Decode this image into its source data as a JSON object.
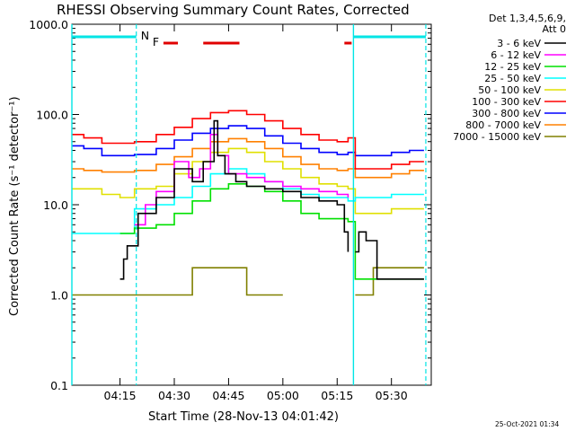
{
  "colors": {
    "background": "#ffffff",
    "axes": "#000000",
    "night_lines": "#00e5e5",
    "flare_marks": "#e00000"
  },
  "chart_data": {
    "type": "line",
    "title": "RHESSI Observing Summary Count Rates, Corrected",
    "xlabel": "Start Time (28-Nov-13 04:01:42)",
    "ylabel": "Corrected Count Rate (s⁻¹ detector⁻¹)",
    "timestamp": "25-Oct-2021 01:34",
    "y_scale": "log",
    "ylim": [
      0.1,
      1000
    ],
    "xlim": [
      "04:01:42",
      "05:41:00"
    ],
    "x_ticks": [
      "04:15",
      "04:30",
      "04:45",
      "05:00",
      "05:15",
      "05:30"
    ],
    "y_ticks": [
      "0.1",
      "1.0",
      "10.0",
      "100.0",
      "1000.0"
    ],
    "legend": {
      "header": [
        "Det 1,3,4,5,6,9,",
        "Att 0"
      ],
      "placement": "right"
    },
    "markers": {
      "night_start": [
        "04:01:42",
        "05:19:30"
      ],
      "night_end": [
        "04:19:30",
        "05:39:30"
      ],
      "night_label": "N",
      "flare_label": "F",
      "flare_intervals": [
        [
          "04:27",
          "04:31"
        ],
        [
          "04:38",
          "04:48"
        ],
        [
          "05:17",
          "05:19"
        ]
      ]
    },
    "series": [
      {
        "name": "3 - 6 keV",
        "color": "#000000",
        "x": [
          "04:15",
          "04:16",
          "04:17",
          "04:20",
          "04:25",
          "04:30",
          "04:35",
          "04:38",
          "04:41",
          "04:42",
          "04:44",
          "04:47",
          "04:50",
          "04:55",
          "05:00",
          "05:05",
          "05:10",
          "05:15",
          "05:17",
          "05:18"
        ],
        "y": [
          1.5,
          2.5,
          3.5,
          8,
          12,
          25,
          18,
          30,
          85,
          35,
          22,
          18,
          16,
          15,
          14,
          12,
          11,
          10,
          5,
          3
        ],
        "x2": [
          "05:20",
          "05:21",
          "05:23",
          "05:26",
          "05:30",
          "05:36",
          "05:39"
        ],
        "y2": [
          3,
          5,
          4,
          1.5,
          1.5,
          1.5,
          1.5
        ]
      },
      {
        "name": "6 - 12 keV",
        "color": "#ff00ff",
        "x": [
          "04:19",
          "04:22",
          "04:25",
          "04:30",
          "04:34",
          "04:37",
          "04:40",
          "04:42",
          "04:45",
          "04:50",
          "04:55",
          "05:00",
          "05:05",
          "05:10",
          "05:15",
          "05:18"
        ],
        "y": [
          6,
          10,
          14,
          30,
          20,
          25,
          60,
          35,
          22,
          20,
          18,
          16,
          15,
          14,
          13,
          12
        ]
      },
      {
        "name": "12 - 25 keV",
        "color": "#00e000",
        "x": [
          "04:15",
          "04:19",
          "04:25",
          "04:30",
          "04:35",
          "04:40",
          "04:45",
          "04:50",
          "04:55",
          "05:00",
          "05:05",
          "05:10",
          "05:15",
          "05:18",
          "05:20",
          "05:25",
          "05:30",
          "05:35",
          "05:39"
        ],
        "y": [
          4.8,
          5.5,
          6,
          8,
          11,
          15,
          17,
          16,
          14,
          11,
          8,
          7,
          7,
          6.5,
          1.5,
          1.5,
          1.5,
          1.5,
          1.5
        ]
      },
      {
        "name": "25 - 50 keV",
        "color": "#00ffff",
        "x": [
          "04:01:42",
          "04:12",
          "04:15",
          "04:19",
          "04:25",
          "04:30",
          "04:35",
          "04:40",
          "04:45",
          "04:50",
          "04:55",
          "05:00",
          "05:05",
          "05:10",
          "05:15",
          "05:18",
          "05:20",
          "05:25",
          "05:30",
          "05:35",
          "05:39"
        ],
        "y": [
          4.8,
          4.8,
          4.8,
          9,
          10,
          12,
          16,
          22,
          25,
          22,
          18,
          15,
          13,
          12,
          12,
          11,
          12,
          12,
          13,
          13,
          13
        ]
      },
      {
        "name": "50 - 100 keV",
        "color": "#e0e000",
        "x": [
          "04:01:42",
          "04:10",
          "04:15",
          "04:19",
          "04:25",
          "04:30",
          "04:35",
          "04:40",
          "04:45",
          "04:50",
          "04:55",
          "05:00",
          "05:05",
          "05:10",
          "05:15",
          "05:18",
          "05:20",
          "05:25",
          "05:30",
          "05:35",
          "05:39"
        ],
        "y": [
          15,
          13,
          12,
          15,
          16,
          22,
          30,
          38,
          42,
          38,
          30,
          25,
          20,
          17,
          16,
          15,
          8,
          8,
          9,
          9,
          9
        ]
      },
      {
        "name": "100 - 300 keV",
        "color": "#ff0000",
        "x": [
          "04:01:42",
          "04:05",
          "04:10",
          "04:15",
          "04:19",
          "04:25",
          "04:30",
          "04:35",
          "04:40",
          "04:45",
          "04:50",
          "04:55",
          "05:00",
          "05:05",
          "05:10",
          "05:15",
          "05:18",
          "05:20",
          "05:25",
          "05:30",
          "05:35",
          "05:39"
        ],
        "y": [
          60,
          55,
          48,
          48,
          50,
          60,
          72,
          90,
          105,
          110,
          100,
          85,
          70,
          60,
          52,
          50,
          55,
          25,
          25,
          28,
          30,
          30
        ]
      },
      {
        "name": "300 - 800 keV",
        "color": "#0000ff",
        "x": [
          "04:01:42",
          "04:05",
          "04:10",
          "04:15",
          "04:19",
          "04:25",
          "04:30",
          "04:35",
          "04:40",
          "04:45",
          "04:50",
          "04:55",
          "05:00",
          "05:05",
          "05:10",
          "05:15",
          "05:18",
          "05:20",
          "05:25",
          "05:30",
          "05:35",
          "05:39"
        ],
        "y": [
          45,
          42,
          35,
          35,
          36,
          42,
          52,
          62,
          70,
          75,
          70,
          58,
          48,
          42,
          38,
          36,
          38,
          35,
          35,
          38,
          40,
          40
        ]
      },
      {
        "name": "800 - 7000 keV",
        "color": "#ff8000",
        "x": [
          "04:01:42",
          "04:05",
          "04:10",
          "04:15",
          "04:19",
          "04:25",
          "04:30",
          "04:35",
          "04:40",
          "04:45",
          "04:50",
          "04:55",
          "05:00",
          "05:05",
          "05:10",
          "05:15",
          "05:18",
          "05:20",
          "05:25",
          "05:30",
          "05:35",
          "05:39"
        ],
        "y": [
          25,
          24,
          23,
          23,
          24,
          28,
          34,
          42,
          50,
          54,
          50,
          42,
          34,
          28,
          25,
          24,
          25,
          20,
          20,
          22,
          24,
          24
        ]
      },
      {
        "name": "7000 - 15000 keV",
        "color": "#808000",
        "x": [
          "04:01:42",
          "04:18",
          "04:19",
          "04:30",
          "04:34",
          "04:35",
          "04:49",
          "04:50",
          "04:55",
          "05:00"
        ],
        "y": [
          1,
          1,
          1,
          1,
          1,
          2,
          2,
          1,
          1,
          1
        ],
        "x2": [
          "05:20",
          "05:24",
          "05:25",
          "05:39"
        ],
        "y2": [
          1,
          1,
          2,
          2
        ]
      }
    ]
  }
}
